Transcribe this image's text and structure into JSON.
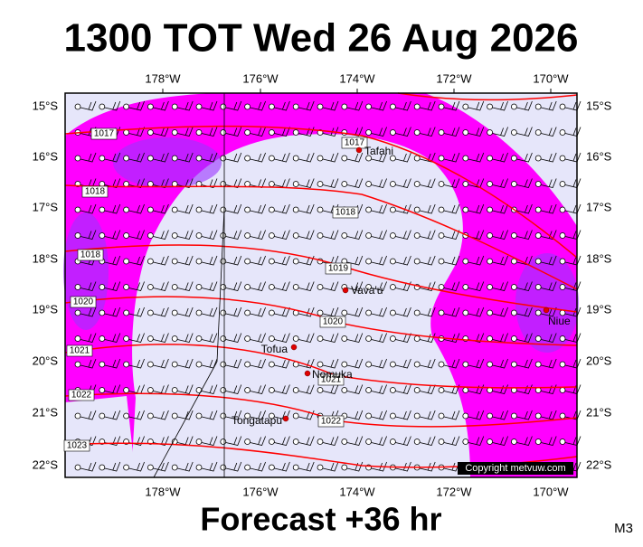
{
  "title": "1300 TOT Wed 26 Aug 2026",
  "footer": "Forecast +36 hr",
  "corner": "M3",
  "copyright": "Copyright metvuw.com",
  "lon_labels": [
    "178°W",
    "176°W",
    "174°W",
    "172°W",
    "170°W"
  ],
  "lat_labels": [
    "15°S",
    "16°S",
    "17°S",
    "18°S",
    "19°S",
    "20°S",
    "21°S",
    "22°S"
  ],
  "places": [
    {
      "label": "Tafahi"
    },
    {
      "label": "Vava'u"
    },
    {
      "label": "Niue"
    },
    {
      "label": "Tofua"
    },
    {
      "label": "Nomuka"
    },
    {
      "label": "Tongatapu"
    }
  ],
  "isobar_labels": [
    "1017",
    "1017",
    "1018",
    "1018",
    "1018",
    "1019",
    "1020",
    "1020",
    "1021",
    "1021",
    "1022",
    "1022",
    "1023"
  ]
}
